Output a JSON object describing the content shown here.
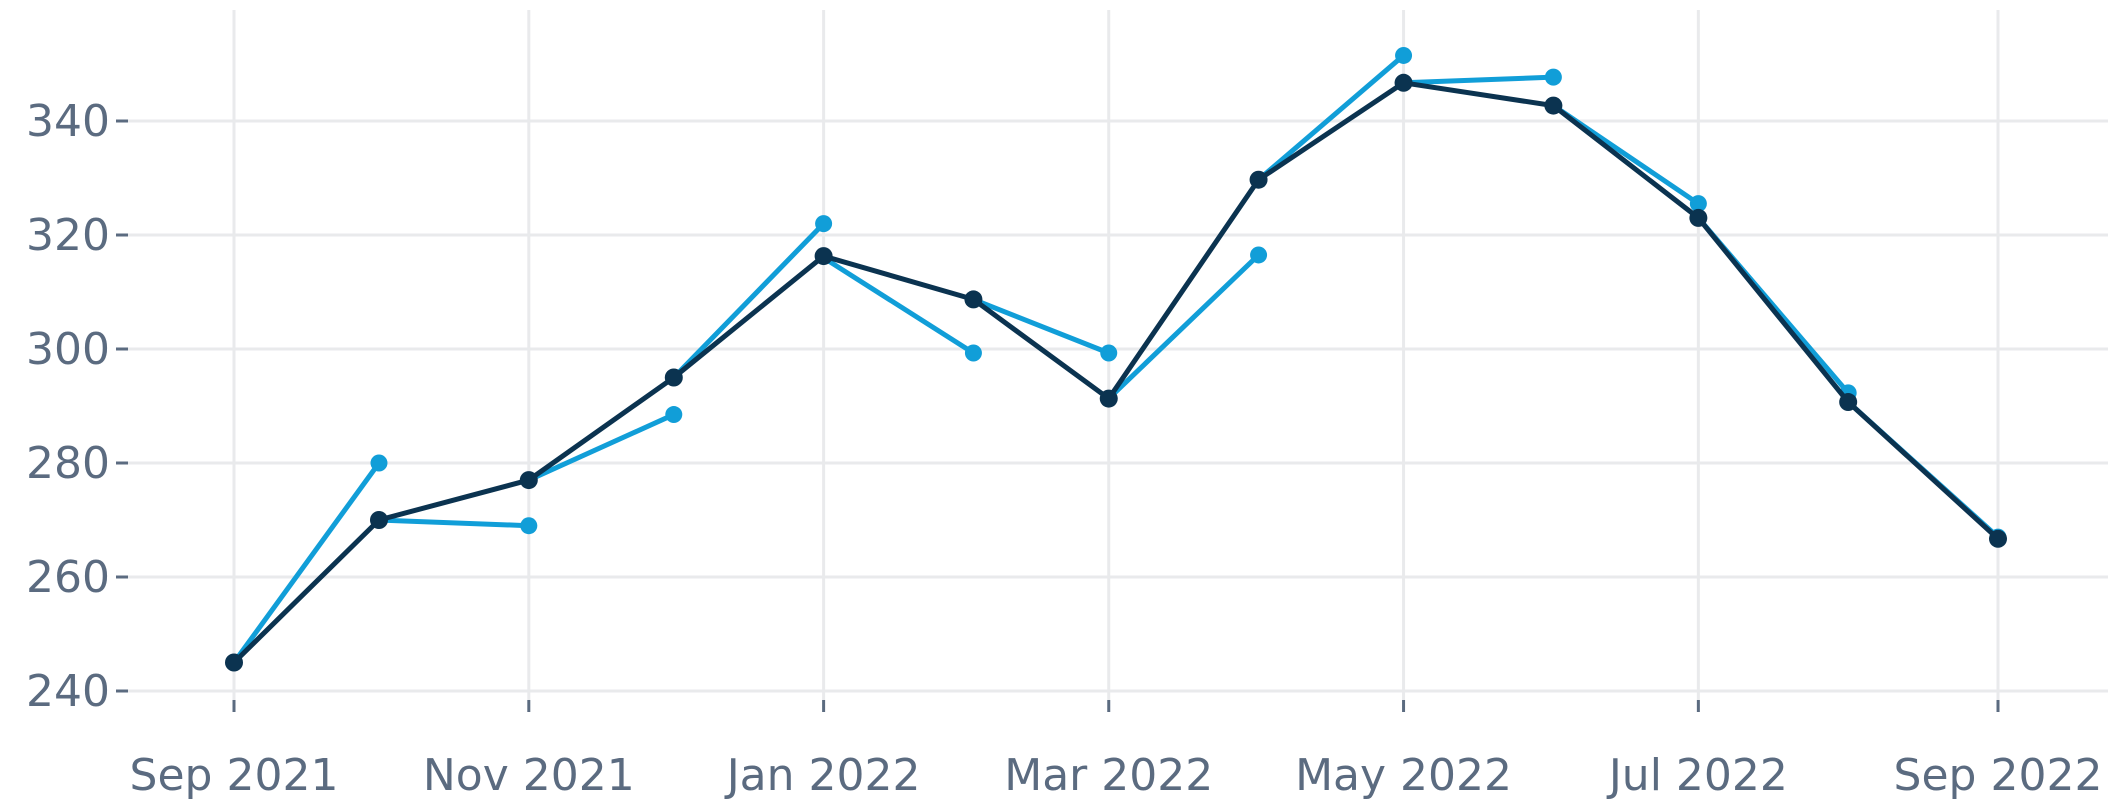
{
  "chart_data": {
    "type": "line",
    "x_ticks": [
      "Sep 2021",
      "Nov 2021",
      "Jan 2022",
      "Mar 2022",
      "May 2022",
      "Jul 2022",
      "Sep 2022"
    ],
    "y_ticks": [
      240,
      260,
      280,
      300,
      320,
      340
    ],
    "ylim": [
      234,
      356
    ],
    "grid": true,
    "series": [
      {
        "style": "forecast-segments",
        "color": "#119ed8",
        "segments": [
          [
            [
              "2021-09-01",
              245
            ],
            [
              "2021-10-01",
              280
            ]
          ],
          [
            [
              "2021-10-01",
              270
            ],
            [
              "2021-11-01",
              269
            ]
          ],
          [
            [
              "2021-11-01",
              277
            ],
            [
              "2021-12-01",
              288.5
            ]
          ],
          [
            [
              "2021-12-01",
              295
            ],
            [
              "2022-01-01",
              322
            ]
          ],
          [
            [
              "2022-01-01",
              316
            ],
            [
              "2022-02-01",
              299.3
            ]
          ],
          [
            [
              "2022-02-01",
              308.7
            ],
            [
              "2022-03-01",
              299.3
            ]
          ],
          [
            [
              "2022-03-01",
              291.3
            ],
            [
              "2022-04-01",
              316.5
            ]
          ],
          [
            [
              "2022-04-01",
              329.7
            ],
            [
              "2022-05-01",
              351.5
            ]
          ],
          [
            [
              "2022-05-01",
              346.7
            ],
            [
              "2022-06-01",
              347.7
            ]
          ],
          [
            [
              "2022-06-01",
              342.7
            ],
            [
              "2022-07-01",
              325.5
            ]
          ],
          [
            [
              "2022-07-01",
              323
            ],
            [
              "2022-08-01",
              292.3
            ]
          ],
          [
            [
              "2022-08-01",
              290.7
            ],
            [
              "2022-09-01",
              267
            ]
          ]
        ]
      },
      {
        "style": "actual",
        "color": "#0b3350",
        "points": [
          [
            "2021-09-01",
            245
          ],
          [
            "2021-10-01",
            270
          ],
          [
            "2021-11-01",
            277
          ],
          [
            "2021-12-01",
            295
          ],
          [
            "2022-01-01",
            316.3
          ],
          [
            "2022-02-01",
            308.7
          ],
          [
            "2022-03-01",
            291.3
          ],
          [
            "2022-04-01",
            329.7
          ],
          [
            "2022-05-01",
            346.7
          ],
          [
            "2022-06-01",
            342.7
          ],
          [
            "2022-07-01",
            323
          ],
          [
            "2022-08-01",
            290.7
          ],
          [
            "2022-09-01",
            266.7
          ]
        ]
      }
    ]
  }
}
